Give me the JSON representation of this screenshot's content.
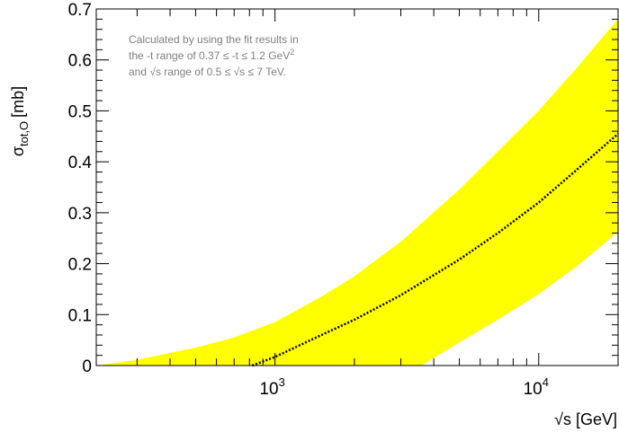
{
  "chart_data": {
    "type": "area",
    "xlabel": "√s [GeV]",
    "ylabel_main": "σ",
    "ylabel_sub": "tot,O",
    "ylabel_unit": "[mb]",
    "x_scale": "log",
    "xlim": [
      210,
      20000
    ],
    "ylim": [
      0,
      0.7
    ],
    "grid": false,
    "y_ticks": [
      {
        "value": 0,
        "label": "0"
      },
      {
        "value": 0.1,
        "label": "0.1"
      },
      {
        "value": 0.2,
        "label": "0.2"
      },
      {
        "value": 0.3,
        "label": "0.3"
      },
      {
        "value": 0.4,
        "label": "0.4"
      },
      {
        "value": 0.5,
        "label": "0.5"
      },
      {
        "value": 0.6,
        "label": "0.6"
      },
      {
        "value": 0.7,
        "label": "0.7"
      }
    ],
    "x_ticks": [
      {
        "value": 1000,
        "base": "10",
        "exp": "3"
      },
      {
        "value": 10000,
        "base": "10",
        "exp": "4"
      }
    ],
    "band_color": "#ffff00",
    "central_color": "#000000",
    "band_upper": {
      "x": [
        210,
        300,
        500,
        700,
        1000,
        1500,
        2000,
        3000,
        5000,
        7000,
        10000,
        14000,
        20000
      ],
      "y": [
        0,
        0.011,
        0.035,
        0.055,
        0.085,
        0.135,
        0.175,
        0.243,
        0.345,
        0.42,
        0.5,
        0.585,
        0.68
      ]
    },
    "band_lower": {
      "x": [
        210,
        3600,
        5000,
        7000,
        10000,
        14000,
        20000
      ],
      "y": [
        0,
        0,
        0.045,
        0.09,
        0.14,
        0.195,
        0.262
      ]
    },
    "central": {
      "x": [
        820,
        1000,
        1500,
        2000,
        3000,
        5000,
        7000,
        10000,
        14000,
        20000
      ],
      "y": [
        0,
        0.017,
        0.06,
        0.09,
        0.138,
        0.208,
        0.26,
        0.32,
        0.385,
        0.455
      ]
    },
    "annotation": {
      "line1": "Calculated by using the fit results in",
      "line2_prefix": "the -t range of 0.37 ≤ -t ≤ 1.2 GeV",
      "line2_sup": "2",
      "line3": "and √s range of 0.5 ≤ √s ≤ 7 TeV."
    }
  }
}
